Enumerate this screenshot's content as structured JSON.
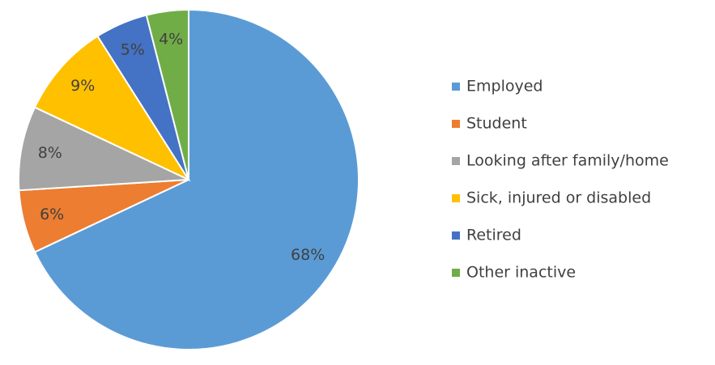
{
  "chart_data": {
    "type": "pie",
    "categories": [
      "Employed",
      "Student",
      "Looking after family/home",
      "Sick, injured or disabled",
      "Retired",
      "Other inactive"
    ],
    "values": [
      68,
      6,
      8,
      9,
      5,
      4
    ],
    "value_labels": [
      "68%",
      "6%",
      "8%",
      "9%",
      "5%",
      "4%"
    ],
    "colors": [
      "#5b9bd5",
      "#ed7d31",
      "#a5a5a5",
      "#ffc000",
      "#4472c4",
      "#70ad47"
    ],
    "legend": "right"
  }
}
